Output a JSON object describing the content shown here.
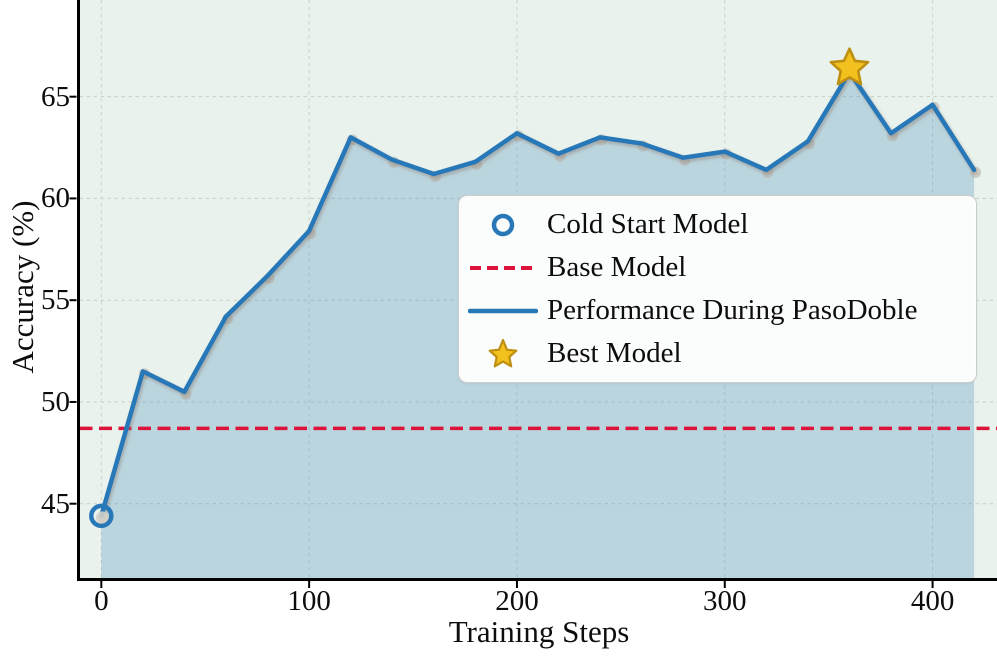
{
  "chart_data": {
    "type": "line",
    "title": "",
    "xlabel": "Training Steps",
    "ylabel": "Accuracy (%)",
    "x_ticks": [
      0,
      100,
      200,
      300,
      400
    ],
    "x_tick_labels": [
      "0",
      "100",
      "200",
      "300",
      "400"
    ],
    "y_ticks": [
      45,
      50,
      55,
      60,
      65
    ],
    "y_tick_labels": [
      "45",
      "50",
      "55",
      "60",
      "65"
    ],
    "xlim": [
      -10.5,
      431
    ],
    "ylim": [
      41.35,
      69.75
    ],
    "grid": true,
    "series": [
      {
        "name": "Performance During PasoDoble",
        "type": "line",
        "area_fill": true,
        "color": "#2878b8",
        "x": [
          0,
          20,
          40,
          60,
          80,
          100,
          120,
          140,
          160,
          180,
          200,
          220,
          240,
          260,
          280,
          300,
          320,
          340,
          360,
          380,
          400,
          420
        ],
        "y": [
          44.4,
          51.5,
          50.5,
          54.2,
          56.2,
          58.4,
          63.0,
          61.9,
          61.2,
          61.8,
          63.2,
          62.2,
          63.0,
          62.7,
          62.0,
          62.3,
          61.4,
          62.8,
          66.2,
          63.2,
          64.6,
          61.4
        ]
      },
      {
        "name": "Base Model",
        "type": "hline",
        "style": "dashed",
        "color": "#dc143c",
        "value": 48.7
      }
    ],
    "annotations": {
      "cold_start_model": {
        "label": "Cold Start Model",
        "step": 0,
        "accuracy": 44.4
      },
      "best_model": {
        "label": "Best Model",
        "step": 360,
        "accuracy": 66.2
      }
    },
    "legend": {
      "position": "center",
      "items": [
        {
          "label": "Cold Start Model",
          "marker": "circle-outline",
          "color": "#2878b8"
        },
        {
          "label": "Base Model",
          "marker": "dashed-line",
          "color": "#dc143c"
        },
        {
          "label": "Performance During PasoDoble",
          "marker": "solid-line",
          "color": "#2878b8"
        },
        {
          "label": "Best Model",
          "marker": "star",
          "color": "#f2c11d"
        }
      ]
    },
    "colors": {
      "line": "#2878b8",
      "area_fill": "rgba(42,120,184,0.24)",
      "base_model": "#dc143c",
      "star_fill": "#f2c11d",
      "star_edge": "#bd8f12",
      "plot_background": "#e9f2ec",
      "gridline": "#c6ccc6",
      "axis": "#000000",
      "point_shadow": "#b6aa9c"
    }
  }
}
